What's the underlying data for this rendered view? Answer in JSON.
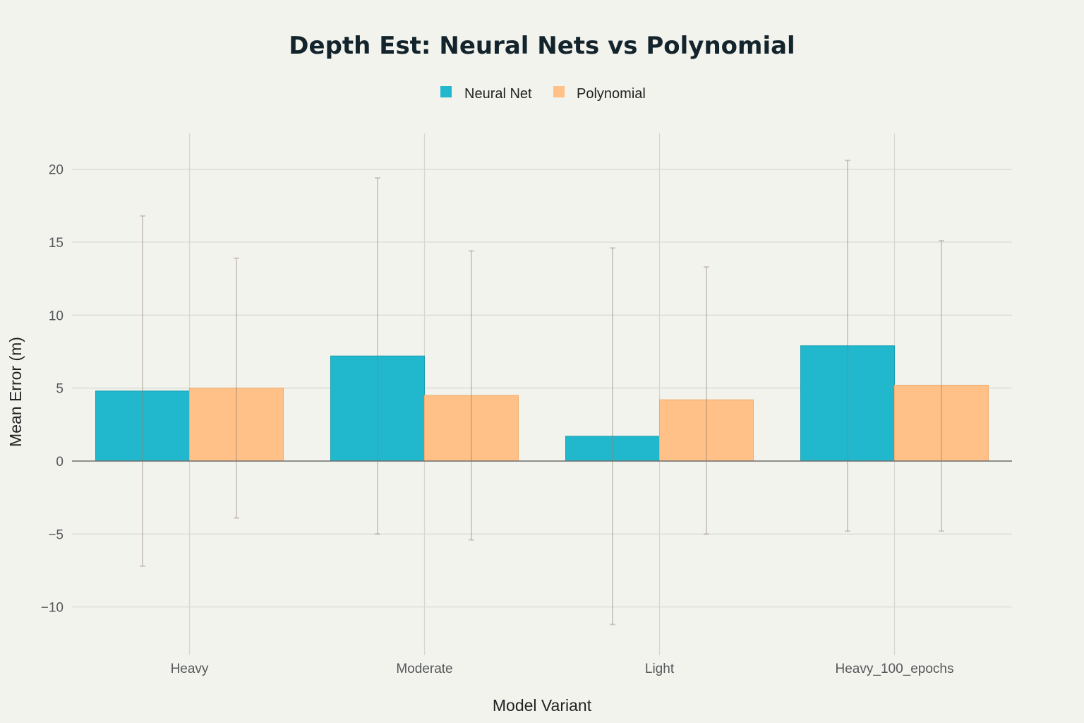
{
  "chart_data": {
    "type": "bar",
    "title": "Depth Est: Neural Nets vs Polynomial",
    "xlabel": "Model Variant",
    "ylabel": "Mean Error (m)",
    "categories": [
      "Heavy",
      "Moderate",
      "Light",
      "Heavy_100_epochs"
    ],
    "series": [
      {
        "name": "Neural Net",
        "color": "#21b8cd",
        "values": [
          4.8,
          7.2,
          1.7,
          7.9
        ],
        "error_low": [
          -7.2,
          -5.0,
          -11.2,
          -4.8
        ],
        "error_high": [
          16.8,
          19.4,
          14.6,
          20.6
        ]
      },
      {
        "name": "Polynomial",
        "color": "#ffc187",
        "values": [
          5.0,
          4.5,
          4.2,
          5.2
        ],
        "error_low": [
          -3.9,
          -5.4,
          -5.0,
          -4.8
        ],
        "error_high": [
          13.9,
          14.4,
          13.3,
          15.1
        ]
      }
    ],
    "ylim": [
      -13.2,
      22.5
    ],
    "yticks": [
      -10,
      -5,
      0,
      5,
      10,
      15,
      20
    ],
    "ytick_labels": [
      "−10",
      "−5",
      "0",
      "5",
      "10",
      "15",
      "20"
    ],
    "grid": true,
    "legend_position": "top-center"
  }
}
